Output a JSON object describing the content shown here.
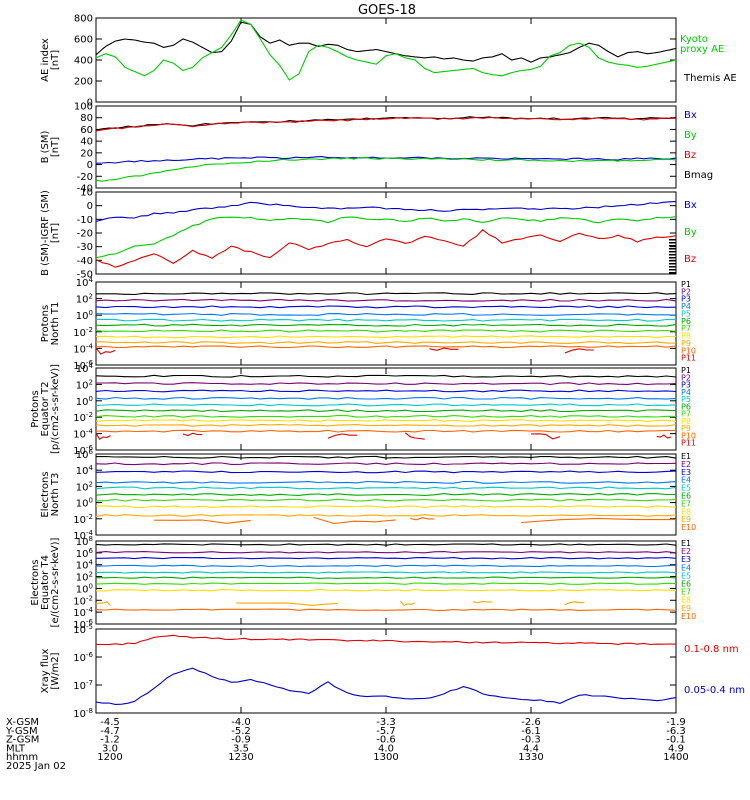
{
  "title": "GOES-18",
  "colors": {
    "black": "#000000",
    "red": "#dd0000",
    "green": "#00cc00",
    "blue": "#0000cc",
    "p_colors": [
      "#000000",
      "#7a007a",
      "#0000dd",
      "#0077ff",
      "#00c8c8",
      "#00aa00",
      "#33dd00",
      "#ffdd00",
      "#ffaa00",
      "#ff6600",
      "#dd0000"
    ],
    "e_colors": [
      "#000000",
      "#7a007a",
      "#0000dd",
      "#0077ff",
      "#00c8c8",
      "#00aa00",
      "#33dd00",
      "#ffdd00",
      "#ffaa00",
      "#ff6600",
      "#dd0000"
    ]
  },
  "chart_data": [
    {
      "type": "line",
      "panel": "ae",
      "ylabel": [
        "AE index",
        "[nT]"
      ],
      "ylim": [
        0,
        800
      ],
      "yticks": [
        "0",
        "200",
        "400",
        "600",
        "800"
      ],
      "legend": [
        {
          "name": "Kyoto",
          "color": "green"
        },
        {
          "name": "proxy AE",
          "color": "green"
        },
        {
          "name": "Themis AE",
          "color": "black"
        }
      ],
      "x": [
        1200,
        1202,
        1204,
        1206,
        1208,
        1210,
        1212,
        1214,
        1216,
        1218,
        1220,
        1222,
        1224,
        1226,
        1228,
        1230,
        1232,
        1234,
        1236,
        1238,
        1240,
        1242,
        1244,
        1246,
        1248,
        1250,
        1252,
        1254,
        1256,
        1258,
        1300,
        1302,
        1304,
        1306,
        1308,
        1310,
        1312,
        1314,
        1316,
        1318,
        1320,
        1322,
        1324,
        1326,
        1328,
        1330,
        1332,
        1334,
        1336,
        1338,
        1340,
        1342,
        1344,
        1346,
        1348,
        1350,
        1352,
        1354,
        1356,
        1358,
        1400
      ],
      "series": [
        {
          "color": "black",
          "values": [
            450,
            530,
            580,
            600,
            590,
            570,
            560,
            520,
            540,
            600,
            570,
            520,
            470,
            480,
            580,
            760,
            740,
            620,
            560,
            590,
            540,
            560,
            560,
            530,
            550,
            540,
            500,
            480,
            490,
            500,
            480,
            460,
            440,
            430,
            420,
            430,
            410,
            420,
            400,
            390,
            420,
            430,
            460,
            400,
            420,
            380,
            420,
            430,
            450,
            470,
            520,
            560,
            540,
            480,
            430,
            470,
            480,
            460,
            470,
            490,
            510
          ]
        },
        {
          "color": "green",
          "values": [
            420,
            460,
            430,
            330,
            290,
            250,
            300,
            400,
            370,
            300,
            330,
            420,
            470,
            520,
            640,
            780,
            740,
            600,
            450,
            350,
            210,
            270,
            480,
            540,
            520,
            480,
            430,
            400,
            380,
            360,
            440,
            460,
            420,
            400,
            320,
            280,
            290,
            300,
            310,
            320,
            280,
            260,
            250,
            280,
            300,
            310,
            340,
            440,
            470,
            540,
            560,
            520,
            420,
            380,
            360,
            350,
            330,
            340,
            360,
            380,
            400
          ]
        }
      ]
    },
    {
      "type": "line",
      "panel": "b",
      "ylabel": [
        "B (SM)",
        "[nT]"
      ],
      "ylim": [
        -40,
        100
      ],
      "yticks": [
        "-40",
        "-20",
        "0",
        "20",
        "40",
        "60",
        "80",
        "100"
      ],
      "legend": [
        {
          "name": "Bx",
          "color": "blue"
        },
        {
          "name": "By",
          "color": "green"
        },
        {
          "name": "Bz",
          "color": "red"
        },
        {
          "name": "Bmag",
          "color": "black"
        }
      ],
      "x": [
        1200,
        1204,
        1208,
        1212,
        1216,
        1220,
        1224,
        1228,
        1232,
        1236,
        1240,
        1244,
        1248,
        1252,
        1256,
        1300,
        1304,
        1308,
        1312,
        1316,
        1320,
        1324,
        1328,
        1332,
        1336,
        1340,
        1344,
        1348,
        1352,
        1356,
        1400
      ],
      "series": [
        {
          "color": "black",
          "values": [
            60,
            63,
            65,
            68,
            70,
            67,
            70,
            72,
            74,
            73,
            74,
            75,
            76,
            77,
            78,
            79,
            80,
            80,
            79,
            80,
            81,
            80,
            79,
            80,
            78,
            79,
            80,
            79,
            78,
            79,
            80
          ]
        },
        {
          "color": "red",
          "values": [
            58,
            62,
            64,
            67,
            69,
            66,
            69,
            71,
            73,
            72,
            73,
            74,
            75,
            76,
            77,
            78,
            79,
            79,
            78,
            79,
            80,
            79,
            78,
            79,
            77,
            78,
            79,
            78,
            77,
            78,
            79
          ]
        },
        {
          "color": "blue",
          "values": [
            2,
            4,
            5,
            7,
            8,
            9,
            10,
            11,
            12,
            12,
            11,
            12,
            13,
            12,
            11,
            12,
            12,
            11,
            11,
            10,
            11,
            10,
            10,
            9,
            10,
            10,
            9,
            9,
            10,
            10,
            11
          ]
        },
        {
          "color": "green",
          "values": [
            -28,
            -25,
            -20,
            -15,
            -8,
            -3,
            0,
            3,
            5,
            7,
            8,
            9,
            10,
            10,
            11,
            10,
            10,
            10,
            9,
            9,
            8,
            8,
            8,
            7,
            6,
            6,
            6,
            7,
            7,
            8,
            8
          ]
        }
      ]
    },
    {
      "type": "line",
      "panel": "dbs",
      "ylabel": [
        "B (SM)-IGRF (SM)",
        "[nT]"
      ],
      "ylim": [
        -50,
        10
      ],
      "yticks": [
        "-50",
        "-40",
        "-30",
        "-20",
        "-10",
        "0",
        "10"
      ],
      "legend": [
        {
          "name": "Bx",
          "color": "blue"
        },
        {
          "name": "By",
          "color": "green"
        },
        {
          "name": "Bz",
          "color": "red"
        }
      ],
      "x": [
        1200,
        1204,
        1208,
        1212,
        1216,
        1220,
        1224,
        1228,
        1232,
        1236,
        1240,
        1244,
        1248,
        1252,
        1256,
        1300,
        1304,
        1308,
        1312,
        1316,
        1320,
        1324,
        1328,
        1332,
        1336,
        1340,
        1344,
        1348,
        1352,
        1356,
        1400
      ],
      "series": [
        {
          "color": "blue",
          "values": [
            -12,
            -8,
            -9,
            -6,
            -5,
            -3,
            -2,
            0,
            2,
            1,
            0,
            -1,
            -2,
            -2,
            -1,
            -2,
            -3,
            -3,
            -4,
            -3,
            -3,
            -2,
            -2,
            -3,
            -2,
            -2,
            -1,
            0,
            1,
            2,
            3
          ]
        },
        {
          "color": "green",
          "values": [
            -38,
            -35,
            -30,
            -28,
            -22,
            -15,
            -10,
            -8,
            -9,
            -11,
            -9,
            -10,
            -12,
            -8,
            -10,
            -10,
            -12,
            -9,
            -11,
            -10,
            -12,
            -9,
            -10,
            -11,
            -9,
            -10,
            -12,
            -10,
            -11,
            -9,
            -8
          ]
        },
        {
          "color": "red",
          "values": [
            -40,
            -45,
            -40,
            -35,
            -42,
            -33,
            -38,
            -30,
            -34,
            -38,
            -27,
            -32,
            -28,
            -25,
            -30,
            -24,
            -28,
            -22,
            -26,
            -30,
            -18,
            -27,
            -24,
            -22,
            -26,
            -20,
            -24,
            -22,
            -26,
            -23,
            -22
          ]
        }
      ]
    },
    {
      "type": "line",
      "panel": "p1",
      "ylabel": [
        "Protons",
        "North T1"
      ],
      "ylim_log": [
        -6,
        4
      ],
      "yticks": [
        "10^4",
        "10^2",
        "10^0",
        "10^-2",
        "10^-4",
        "10^-6"
      ],
      "labels": [
        "P1",
        "P2",
        "P3",
        "P4",
        "P5",
        "P6",
        "P7",
        "P8",
        "P9",
        "P10",
        "P11"
      ],
      "levels_log": [
        2.6,
        1.8,
        1.0,
        0.1,
        -0.6,
        -1.2,
        -1.9,
        -2.6,
        -3.3,
        -3.8,
        -4.3
      ],
      "gaps_channel": 10,
      "gap_segments": [
        [
          1200,
          1204
        ],
        [
          1309,
          1315
        ],
        [
          1337,
          1343
        ]
      ]
    },
    {
      "type": "line",
      "panel": "p2",
      "ylabel": [
        "Protons",
        "Equator T2",
        "[p/(cm2-s-sr-keV)]"
      ],
      "ylim_log": [
        -6,
        4
      ],
      "yticks": [
        "10^4",
        "10^2",
        "10^0",
        "10^-2",
        "10^-4",
        "10^-6"
      ],
      "labels": [
        "P1",
        "P2",
        "P3",
        "P4",
        "P5",
        "P6",
        "P7",
        "P8",
        "P9",
        "P10",
        "P11"
      ],
      "levels_log": [
        3.0,
        2.1,
        1.2,
        0.3,
        -0.5,
        -1.2,
        -1.9,
        -2.4,
        -3.0,
        -3.7,
        -4.3
      ],
      "gaps_channel": 10,
      "gap_segments": [
        [
          1200,
          1203
        ],
        [
          1218,
          1222
        ],
        [
          1248,
          1254
        ],
        [
          1304,
          1308
        ],
        [
          1330,
          1336
        ],
        [
          1356,
          1359
        ]
      ]
    },
    {
      "type": "line",
      "panel": "e1",
      "ylabel": [
        "Electrons",
        "North T3"
      ],
      "ylim_log": [
        -4,
        6
      ],
      "yticks": [
        "10^6",
        "10^4",
        "10^2",
        "10^0",
        "10^-2",
        "10^-4"
      ],
      "labels": [
        "E1",
        "E2",
        "E3",
        "E4",
        "E5",
        "E6",
        "E7",
        "E8",
        "E9",
        "E10"
      ],
      "levels_log": [
        5.6,
        4.8,
        3.8,
        2.5,
        1.8,
        1.0,
        0.3,
        -0.5,
        -1.6,
        -2.2
      ],
      "gaps_channel": 9,
      "gap_segments": [
        [
          1212,
          1232
        ],
        [
          1245,
          1302
        ],
        [
          1305,
          1310
        ],
        [
          1328,
          1400
        ]
      ]
    },
    {
      "type": "line",
      "panel": "e2",
      "ylabel": [
        "Electrons",
        "Equator T4",
        "[e/(cm2-s-sr-keV)]"
      ],
      "ylim_log": [
        -6,
        8
      ],
      "yticks": [
        "10^8",
        "10^6",
        "10^4",
        "10^2",
        "10^0",
        "10^-2",
        "10^-4",
        "10^-6"
      ],
      "labels": [
        "E1",
        "E2",
        "E3",
        "E4",
        "E5",
        "E6",
        "E7",
        "E8",
        "E9",
        "E10"
      ],
      "levels_log": [
        7.4,
        6.1,
        5.1,
        3.8,
        2.7,
        1.8,
        0.8,
        -0.3,
        -2.5,
        -3.6
      ],
      "gaps_channel": 8,
      "gap_segments": [
        [
          1200,
          1203
        ],
        [
          1229,
          1250
        ],
        [
          1303,
          1306
        ],
        [
          1318,
          1322
        ],
        [
          1337,
          1341
        ]
      ]
    },
    {
      "type": "line",
      "panel": "xray",
      "ylabel": [
        "Xray flux",
        "[W/m2]"
      ],
      "ylim_log": [
        -8,
        -5
      ],
      "yticks": [
        "10^-5",
        "10^-6",
        "10^-7",
        "10^-8"
      ],
      "legend": [
        {
          "name": "0.1-0.8 nm",
          "color": "red"
        },
        {
          "name": "0.05-0.4 nm",
          "color": "blue"
        }
      ],
      "x": [
        1200,
        1204,
        1208,
        1212,
        1216,
        1220,
        1224,
        1228,
        1232,
        1236,
        1240,
        1244,
        1248,
        1252,
        1256,
        1300,
        1304,
        1308,
        1312,
        1316,
        1320,
        1324,
        1328,
        1332,
        1336,
        1340,
        1344,
        1348,
        1352,
        1356,
        1400
      ],
      "series": [
        {
          "color": "red",
          "values": [
            -5.55,
            -5.55,
            -5.5,
            -5.3,
            -5.25,
            -5.3,
            -5.33,
            -5.35,
            -5.36,
            -5.37,
            -5.38,
            -5.38,
            -5.4,
            -5.41,
            -5.42,
            -5.42,
            -5.44,
            -5.45,
            -5.46,
            -5.47,
            -5.47,
            -5.48,
            -5.49,
            -5.5,
            -5.5,
            -5.51,
            -5.52,
            -5.53,
            -5.53,
            -5.54,
            -5.54
          ]
        },
        {
          "color": "blue",
          "values": [
            -7.6,
            -7.7,
            -7.6,
            -7.1,
            -6.6,
            -6.4,
            -6.7,
            -6.9,
            -6.8,
            -7.0,
            -7.2,
            -7.3,
            -6.9,
            -7.3,
            -7.4,
            -7.4,
            -7.5,
            -7.5,
            -7.3,
            -7.05,
            -7.3,
            -7.45,
            -7.5,
            -7.55,
            -7.65,
            -7.35,
            -7.4,
            -7.45,
            -7.5,
            -7.55,
            -7.45
          ]
        }
      ]
    }
  ],
  "footer": {
    "rows": [
      {
        "label": "X-GSM",
        "values": [
          "-4.5",
          "-4.0",
          "-3.3",
          "-2.6",
          "-1.9"
        ]
      },
      {
        "label": "Y-GSM",
        "values": [
          "-4.7",
          "-5.2",
          "-5.7",
          "-6.1",
          "-6.3"
        ]
      },
      {
        "label": "Z-GSM",
        "values": [
          "-1.2",
          "-0.9",
          "-0.6",
          "-0.3",
          "-0.1"
        ]
      },
      {
        "label": "MLT",
        "values": [
          "3.0",
          "3.5",
          "4.0",
          "4.4",
          "4.9"
        ]
      },
      {
        "label": "hhmm",
        "values": [
          "1200",
          "1230",
          "1300",
          "1330",
          "1400"
        ]
      }
    ],
    "date": "2025 Jan 02"
  }
}
